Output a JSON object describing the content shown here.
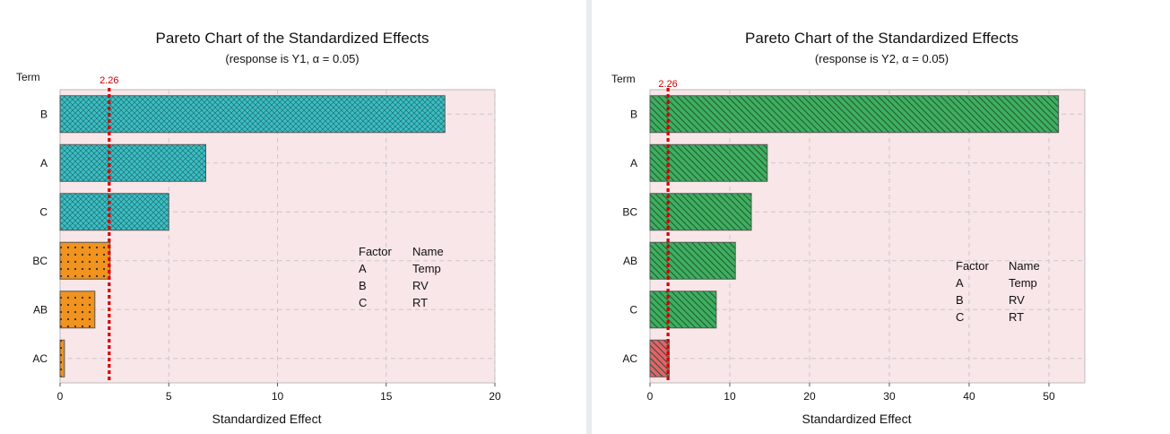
{
  "colors": {
    "plot_background": "#f9e6e8",
    "grid": "#c9c9c9",
    "reference_line": "#d40000",
    "bar_stroke": "#555555"
  },
  "chart_data": [
    {
      "type": "bar",
      "orientation": "horizontal",
      "title": "Pareto Chart of the Standardized Effects",
      "subtitle": "(response is Y1, α = 0.05)",
      "ylabel": "Term",
      "xlabel": "Standardized Effect",
      "categories": [
        "B",
        "A",
        "C",
        "BC",
        "AB",
        "AC"
      ],
      "values": [
        17.7,
        6.7,
        5.0,
        2.3,
        1.6,
        0.2
      ],
      "bar_colors": [
        "#3cbfc4",
        "#3cbfc4",
        "#3cbfc4",
        "#f0931f",
        "#f0931f",
        "#f0931f"
      ],
      "bar_patterns": [
        "crosshatch",
        "crosshatch",
        "crosshatch",
        "dots",
        "dots",
        "dots"
      ],
      "reference_line": 2.26,
      "reference_label": "2.26",
      "xlim": [
        0,
        20
      ],
      "xticks": [
        0,
        5,
        10,
        15,
        20
      ],
      "grid": true,
      "legend": {
        "header": [
          "Factor",
          "Name"
        ],
        "rows": [
          [
            "A",
            "Temp"
          ],
          [
            "B",
            "RV"
          ],
          [
            "C",
            "RT"
          ]
        ]
      }
    },
    {
      "type": "bar",
      "orientation": "horizontal",
      "title": "Pareto Chart of the Standardized Effects",
      "subtitle": "(response is Y2, α = 0.05)",
      "ylabel": "Term",
      "xlabel": "Standardized Effect",
      "categories": [
        "B",
        "A",
        "BC",
        "AB",
        "C",
        "AC"
      ],
      "values": [
        51.2,
        14.7,
        12.7,
        10.7,
        8.3,
        2.4
      ],
      "bar_colors": [
        "#3fae60",
        "#3fae60",
        "#3fae60",
        "#3fae60",
        "#3fae60",
        "#e8606b"
      ],
      "bar_patterns": [
        "diagonal",
        "diagonal",
        "diagonal",
        "diagonal",
        "diagonal",
        "diagonal"
      ],
      "reference_line": 2.26,
      "reference_label": "2.26",
      "xlim": [
        0,
        54.5
      ],
      "xticks": [
        0,
        10,
        20,
        30,
        40,
        50
      ],
      "grid": true,
      "legend": {
        "header": [
          "Factor",
          "Name"
        ],
        "rows": [
          [
            "A",
            "Temp"
          ],
          [
            "B",
            "RV"
          ],
          [
            "C",
            "RT"
          ]
        ]
      }
    }
  ]
}
